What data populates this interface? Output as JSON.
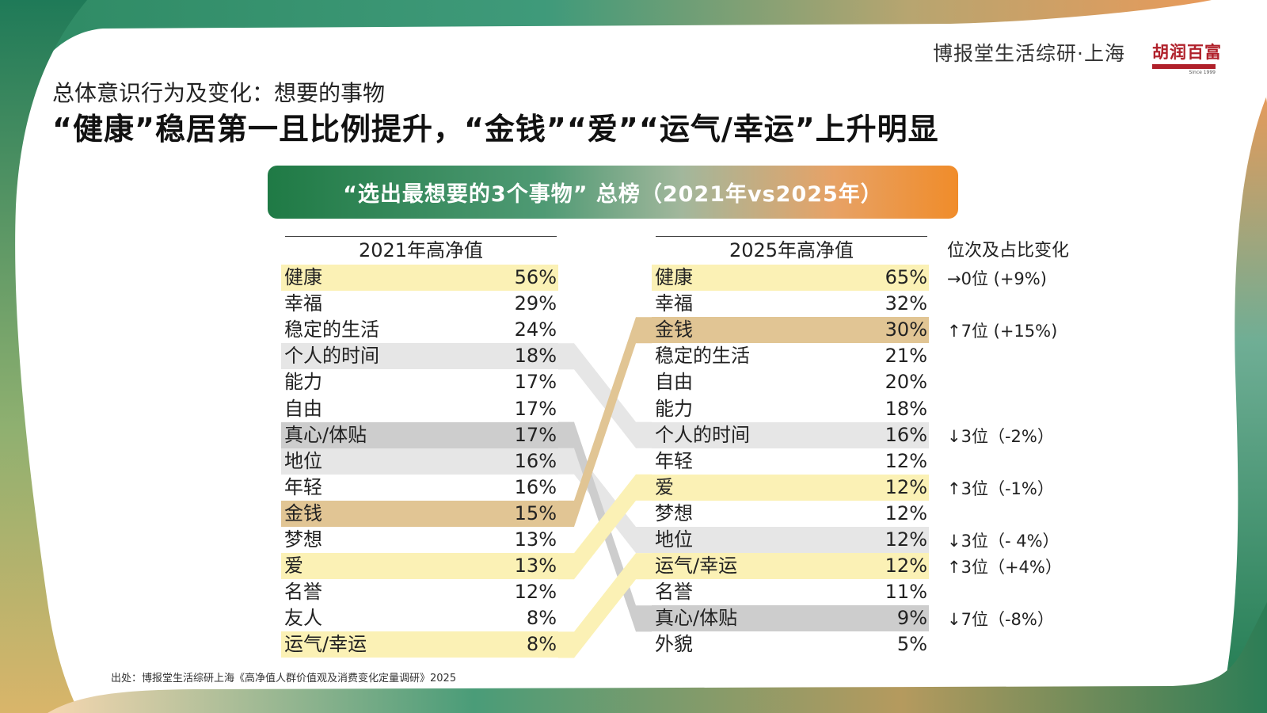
{
  "brand": {
    "name": "博报堂生活综研·上海",
    "logo_text": "胡润百富",
    "logo_since": "Since 1999"
  },
  "subtitle": "总体意识行为及变化：想要的事物",
  "headline": "“健康”稳居第一且比例提升，“金钱”“爱”“运气/幸运”上升明显",
  "banner": "“选出最想要的3个事物” 总榜（2021年vs2025年）",
  "colors": {
    "health": "#fbf1b5",
    "money": "#e1c594",
    "love": "#fbf1b5",
    "luck": "#fbf1b5",
    "time": "#e6e6e6",
    "sincerity": "#cdcdcd",
    "status": "#e6e6e6"
  },
  "chart_data": {
    "type": "table",
    "series": [
      {
        "name": "2021年高净值",
        "items": [
          {
            "label": "健康",
            "value": "56%",
            "hl": "health"
          },
          {
            "label": "幸福",
            "value": "29%"
          },
          {
            "label": "稳定的生活",
            "value": "24%"
          },
          {
            "label": "个人的时间",
            "value": "18%",
            "hl": "time"
          },
          {
            "label": "能力",
            "value": "17%"
          },
          {
            "label": "自由",
            "value": "17%"
          },
          {
            "label": "真心/体贴",
            "value": "17%",
            "hl": "sincerity"
          },
          {
            "label": "地位",
            "value": "16%",
            "hl": "status"
          },
          {
            "label": "年轻",
            "value": "16%"
          },
          {
            "label": "金钱",
            "value": "15%",
            "hl": "money"
          },
          {
            "label": "梦想",
            "value": "13%"
          },
          {
            "label": "爱",
            "value": "13%",
            "hl": "love"
          },
          {
            "label": "名誉",
            "value": "12%"
          },
          {
            "label": "友人",
            "value": "8%"
          },
          {
            "label": "运气/幸运",
            "value": "8%",
            "hl": "luck"
          }
        ]
      },
      {
        "name": "2025年高净值",
        "items": [
          {
            "label": "健康",
            "value": "65%",
            "hl": "health"
          },
          {
            "label": "幸福",
            "value": "32%"
          },
          {
            "label": "金钱",
            "value": "30%",
            "hl": "money"
          },
          {
            "label": "稳定的生活",
            "value": "21%"
          },
          {
            "label": "自由",
            "value": "20%"
          },
          {
            "label": "能力",
            "value": "18%"
          },
          {
            "label": "个人的时间",
            "value": "16%",
            "hl": "time"
          },
          {
            "label": "年轻",
            "value": "12%"
          },
          {
            "label": "爱",
            "value": "12%",
            "hl": "love"
          },
          {
            "label": "梦想",
            "value": "12%"
          },
          {
            "label": "地位",
            "value": "12%",
            "hl": "status"
          },
          {
            "label": "运气/幸运",
            "value": "12%",
            "hl": "luck"
          },
          {
            "label": "名誉",
            "value": "11%"
          },
          {
            "label": "真心/体贴",
            "value": "9%",
            "hl": "sincerity"
          },
          {
            "label": "外貌",
            "value": "5%"
          }
        ]
      }
    ],
    "change_title": "位次及占比变化",
    "changes": [
      {
        "rank": 0,
        "text": "→0位 (+9%)"
      },
      {
        "rank": 2,
        "text": "↑7位 (+15%)"
      },
      {
        "rank": 6,
        "text": "↓3位（-2%）"
      },
      {
        "rank": 8,
        "text": "↑3位（-1%）"
      },
      {
        "rank": 10,
        "text": "↓3位（- 4%）"
      },
      {
        "rank": 11,
        "text": "↑3位（+4%）"
      },
      {
        "rank": 13,
        "text": "↓7位（-8%）"
      }
    ],
    "links": [
      {
        "from": 3,
        "to": 6,
        "hl": "time"
      },
      {
        "from": 6,
        "to": 13,
        "hl": "sincerity"
      },
      {
        "from": 7,
        "to": 10,
        "hl": "status"
      },
      {
        "from": 9,
        "to": 2,
        "hl": "money"
      },
      {
        "from": 11,
        "to": 8,
        "hl": "love"
      },
      {
        "from": 14,
        "to": 11,
        "hl": "luck"
      }
    ]
  },
  "source": "出处：博报堂生活综研上海《高净值人群价值观及消费变化定量调研》2025"
}
